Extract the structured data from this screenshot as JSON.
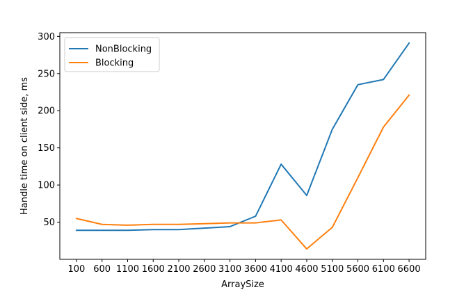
{
  "chart_data": {
    "type": "line",
    "title": "",
    "xlabel": "ArraySize",
    "ylabel": "Handle time on client side, ms",
    "categories": [
      "100",
      "600",
      "1100",
      "1600",
      "2100",
      "2600",
      "3100",
      "3600",
      "4100",
      "4600",
      "5100",
      "5600",
      "6100",
      "6600"
    ],
    "x": [
      100,
      600,
      1100,
      1600,
      2100,
      2600,
      3100,
      3600,
      4100,
      4600,
      5100,
      5600,
      6100,
      6600
    ],
    "series": [
      {
        "name": "NonBlocking",
        "color": "#1f77b4",
        "values": [
          39,
          39,
          39,
          40,
          40,
          42,
          44,
          58,
          128,
          86,
          175,
          235,
          242,
          291
        ]
      },
      {
        "name": "Blocking",
        "color": "#ff7f0e",
        "values": [
          55,
          47,
          46,
          47,
          47,
          48,
          49,
          49,
          53,
          14,
          43,
          110,
          178,
          221
        ]
      }
    ],
    "yticks": [
      50,
      100,
      150,
      200,
      250,
      300
    ],
    "xlim": [
      -225,
      6925
    ],
    "ylim": [
      0,
      305
    ],
    "grid": false,
    "legend_position": "upper left"
  }
}
